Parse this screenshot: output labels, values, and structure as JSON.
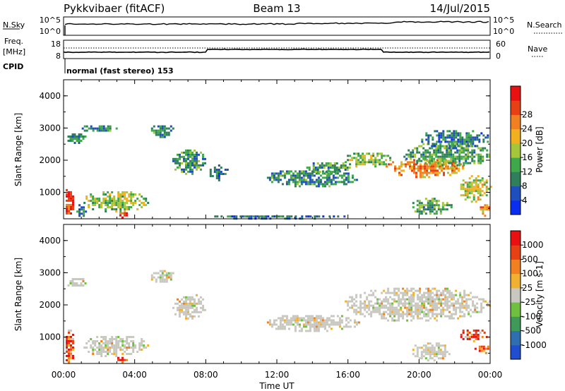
{
  "header": {
    "station": "Pykkvibaer (fitACF)",
    "beam": "Beam 13",
    "date": "14/Jul/2015"
  },
  "nsky_panel": {
    "left_label": "N.Sky",
    "left_ticks": [
      "10^5",
      "10^0"
    ],
    "right_label": "N.Search",
    "right_ticks": [
      "10^5",
      "10^0"
    ]
  },
  "freq_panel": {
    "left_label_1": "Freq.",
    "left_label_2": "[MHz]",
    "left_ticks": [
      "18",
      "8"
    ],
    "right_label": "Nave",
    "right_ticks": [
      "60",
      "0"
    ],
    "cpid_label": "CPID",
    "cpid_text": "normal (fast stereo) 153"
  },
  "chart_data": [
    {
      "type": "heatmap",
      "title": "",
      "quantity": "Power",
      "ylabel": "Slant Range [km]",
      "xlabel": "",
      "ylim": [
        180,
        4500
      ],
      "x_ticks": [
        "00:00",
        "04:00",
        "08:00",
        "12:00",
        "16:00",
        "20:00",
        "00:00"
      ],
      "y_ticks": [
        "1000",
        "2000",
        "3000",
        "4000"
      ],
      "colorbar": {
        "label": "Power [dB]",
        "ticks": [
          "4",
          "8",
          "12",
          "16",
          "20",
          "24",
          "28"
        ],
        "range": [
          0,
          30
        ],
        "colors": [
          "#0a2ef0",
          "#1f4fbf",
          "#2f7f5a",
          "#3ea84a",
          "#a5c63a",
          "#f0b020",
          "#f08020",
          "#e84015",
          "#e81010"
        ]
      },
      "regions": [
        {
          "t": [
            0.0,
            0.6
          ],
          "r": [
            200,
            1300
          ],
          "level": 26
        },
        {
          "t": [
            0.6,
            1.3
          ],
          "r": [
            250,
            700
          ],
          "level": 8
        },
        {
          "t": [
            1.0,
            4.8
          ],
          "r": [
            400,
            1100
          ],
          "level": 14
        },
        {
          "t": [
            2.9,
            3.6
          ],
          "r": [
            250,
            450
          ],
          "level": 27
        },
        {
          "t": [
            0.1,
            1.2
          ],
          "r": [
            2550,
            2900
          ],
          "level": 9
        },
        {
          "t": [
            0.9,
            3.0
          ],
          "r": [
            2900,
            3150
          ],
          "level": 9
        },
        {
          "t": [
            4.8,
            6.2
          ],
          "r": [
            2700,
            3150
          ],
          "level": 9
        },
        {
          "t": [
            6.0,
            8.0
          ],
          "r": [
            1600,
            2400
          ],
          "level": 10
        },
        {
          "t": [
            8.1,
            9.2
          ],
          "r": [
            1400,
            2000
          ],
          "level": 7
        },
        {
          "t": [
            11.2,
            16.6
          ],
          "r": [
            1200,
            1750
          ],
          "level": 9
        },
        {
          "t": [
            13.3,
            16.2
          ],
          "r": [
            1600,
            2000
          ],
          "level": 10
        },
        {
          "t": [
            15.7,
            18.5
          ],
          "r": [
            1800,
            2300
          ],
          "level": 13
        },
        {
          "t": [
            18.0,
            22.5
          ],
          "r": [
            1500,
            2100
          ],
          "level": 21
        },
        {
          "t": [
            19.0,
            24.0
          ],
          "r": [
            1800,
            2600
          ],
          "level": 11
        },
        {
          "t": [
            20.0,
            24.0
          ],
          "r": [
            2400,
            3000
          ],
          "level": 8
        },
        {
          "t": [
            22.2,
            24.0
          ],
          "r": [
            700,
            1600
          ],
          "level": 16
        },
        {
          "t": [
            19.5,
            21.8
          ],
          "r": [
            300,
            900
          ],
          "level": 11
        },
        {
          "t": [
            23.3,
            24.0
          ],
          "r": [
            300,
            700
          ],
          "level": 20
        },
        {
          "t": [
            8.0,
            16.0
          ],
          "r": [
            200,
            350
          ],
          "level": 7
        }
      ]
    },
    {
      "type": "heatmap",
      "title": "",
      "quantity": "Velocity",
      "ylabel": "Slant Range [km]",
      "xlabel": "Time UT",
      "ylim": [
        180,
        4500
      ],
      "x_ticks": [
        "00:00",
        "04:00",
        "08:00",
        "12:00",
        "16:00",
        "20:00",
        "00:00"
      ],
      "y_ticks": [
        "1000",
        "2000",
        "3000",
        "4000"
      ],
      "colorbar": {
        "label": "Velocity [m s-1]",
        "ticks": [
          "1000",
          "500",
          "100",
          "25",
          "-25",
          "-100",
          "-500",
          "-1000"
        ],
        "colors": [
          "#1f4fd0",
          "#2f6fb0",
          "#3f9a5a",
          "#70c040",
          "#c8c8c0",
          "#f0b030",
          "#f08020",
          "#e84015",
          "#e81010"
        ]
      },
      "regions": [
        {
          "t": [
            0.0,
            0.6
          ],
          "r": [
            200,
            1300
          ],
          "class": "neg"
        },
        {
          "t": [
            1.0,
            4.8
          ],
          "r": [
            400,
            1100
          ],
          "class": "gray"
        },
        {
          "t": [
            2.9,
            3.6
          ],
          "r": [
            250,
            450
          ],
          "class": "neg"
        },
        {
          "t": [
            0.1,
            1.2
          ],
          "r": [
            2550,
            2900
          ],
          "class": "gray"
        },
        {
          "t": [
            4.8,
            6.2
          ],
          "r": [
            2700,
            3150
          ],
          "class": "gray"
        },
        {
          "t": [
            6.0,
            8.0
          ],
          "r": [
            1600,
            2400
          ],
          "class": "gray"
        },
        {
          "t": [
            11.2,
            16.6
          ],
          "r": [
            1200,
            1750
          ],
          "class": "gray"
        },
        {
          "t": [
            15.7,
            24.0
          ],
          "r": [
            1500,
            2600
          ],
          "class": "gray"
        },
        {
          "t": [
            22.2,
            23.8
          ],
          "r": [
            900,
            1300
          ],
          "class": "neg"
        },
        {
          "t": [
            23.0,
            24.0
          ],
          "r": [
            500,
            800
          ],
          "class": "neg"
        },
        {
          "t": [
            19.5,
            21.8
          ],
          "r": [
            300,
            900
          ],
          "class": "gray"
        }
      ]
    }
  ]
}
